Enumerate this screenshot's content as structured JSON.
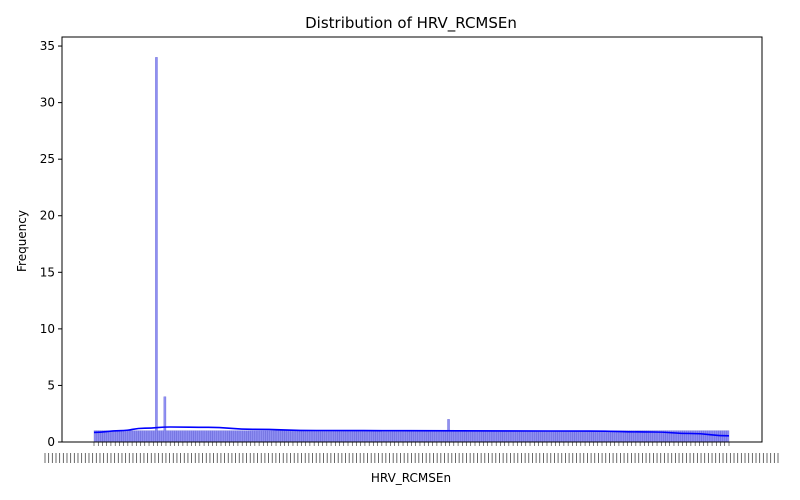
{
  "chart_data": {
    "type": "bar",
    "title": "Distribution of HRV_RCMSEn",
    "xlabel": "HRV_RCMSEn",
    "ylabel": "Frequency",
    "ylim": [
      0,
      35.8
    ],
    "yticks": [
      0,
      5,
      10,
      15,
      20,
      25,
      30,
      35
    ],
    "xtick_labels": "dense, overlapping and illegible",
    "bin_count": 300,
    "baseline_count": 1,
    "peaks": [
      {
        "bin": 29,
        "value": 34
      },
      {
        "bin": 33,
        "value": 4
      },
      {
        "bin": 167,
        "value": 2
      }
    ],
    "kde_curve": [
      {
        "t": 0.0,
        "y": 0.85
      },
      {
        "t": 0.04,
        "y": 1.0
      },
      {
        "t": 0.08,
        "y": 1.22
      },
      {
        "t": 0.12,
        "y": 1.33
      },
      {
        "t": 0.18,
        "y": 1.3
      },
      {
        "t": 0.25,
        "y": 1.12
      },
      {
        "t": 0.35,
        "y": 1.02
      },
      {
        "t": 0.5,
        "y": 1.0
      },
      {
        "t": 0.65,
        "y": 0.98
      },
      {
        "t": 0.78,
        "y": 0.96
      },
      {
        "t": 0.88,
        "y": 0.88
      },
      {
        "t": 0.94,
        "y": 0.75
      },
      {
        "t": 1.0,
        "y": 0.55
      }
    ],
    "grid": false,
    "legend": "none",
    "colors": {
      "bar_fill": "#7b7bf0",
      "bar_edge": "#5555cc",
      "kde_line": "#0000ff"
    }
  }
}
